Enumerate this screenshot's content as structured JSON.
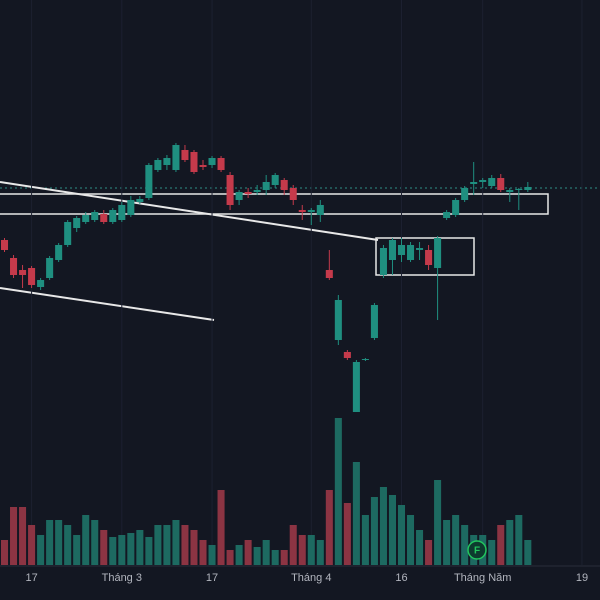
{
  "chart_data": {
    "type": "candlestick",
    "candles": [
      [
        360,
        362,
        348,
        350
      ],
      [
        342,
        345,
        322,
        325
      ],
      [
        330,
        335,
        312,
        325
      ],
      [
        332,
        334,
        312,
        315
      ],
      [
        313,
        322,
        310,
        320
      ],
      [
        322,
        344,
        320,
        342
      ],
      [
        340,
        357,
        338,
        355
      ],
      [
        355,
        380,
        353,
        378
      ],
      [
        372,
        384,
        368,
        382
      ],
      [
        378,
        388,
        376,
        385
      ],
      [
        380,
        390,
        378,
        388
      ],
      [
        386,
        390,
        376,
        378
      ],
      [
        378,
        392,
        376,
        390
      ],
      [
        380,
        398,
        378,
        395
      ],
      [
        385,
        404,
        383,
        400
      ],
      [
        398,
        404,
        396,
        401
      ],
      [
        402,
        437,
        400,
        435
      ],
      [
        430,
        442,
        428,
        440
      ],
      [
        435,
        445,
        430,
        442
      ],
      [
        430,
        457,
        428,
        455
      ],
      [
        450,
        455,
        438,
        440
      ],
      [
        448,
        450,
        426,
        428
      ],
      [
        435,
        440,
        430,
        433
      ],
      [
        435,
        444,
        432,
        442
      ],
      [
        442,
        444,
        428,
        430
      ],
      [
        425,
        428,
        390,
        395
      ],
      [
        400,
        410,
        395,
        408
      ],
      [
        408,
        412,
        402,
        406
      ],
      [
        408,
        415,
        405,
        410
      ],
      [
        410,
        425,
        405,
        418
      ],
      [
        415,
        427,
        412,
        425
      ],
      [
        420,
        422,
        405,
        410
      ],
      [
        412,
        415,
        395,
        400
      ],
      [
        390,
        395,
        380,
        388
      ],
      [
        388,
        392,
        375,
        390
      ],
      [
        385,
        400,
        378,
        395
      ],
      [
        330,
        350,
        320,
        322
      ],
      [
        260,
        305,
        255,
        300
      ],
      [
        248,
        250,
        240,
        242
      ],
      [
        188,
        240,
        188,
        238
      ],
      [
        240,
        242,
        239,
        241
      ],
      [
        262,
        297,
        260,
        295
      ],
      [
        325,
        355,
        322,
        352
      ],
      [
        340,
        362,
        325,
        360
      ],
      [
        345,
        362,
        338,
        355
      ],
      [
        340,
        358,
        338,
        355
      ],
      [
        350,
        358,
        340,
        352
      ],
      [
        350,
        355,
        330,
        335
      ],
      [
        332,
        364,
        280,
        362
      ],
      [
        382,
        390,
        380,
        388
      ],
      [
        385,
        402,
        383,
        400
      ],
      [
        400,
        414,
        398,
        412
      ],
      [
        416,
        438,
        405,
        418
      ],
      [
        418,
        422,
        412,
        420
      ],
      [
        414,
        425,
        412,
        422
      ],
      [
        422,
        426,
        408,
        410
      ],
      [
        408,
        412,
        398,
        410
      ],
      [
        410,
        412,
        390,
        411
      ],
      [
        410,
        418,
        408,
        413
      ]
    ],
    "volumes": [
      25,
      58,
      58,
      40,
      30,
      45,
      45,
      40,
      30,
      50,
      45,
      35,
      28,
      30,
      32,
      35,
      28,
      40,
      40,
      45,
      40,
      35,
      25,
      20,
      75,
      15,
      20,
      25,
      18,
      25,
      15,
      15,
      40,
      30,
      30,
      25,
      75,
      147,
      62,
      103,
      50,
      68,
      78,
      70,
      60,
      50,
      35,
      25,
      85,
      45,
      50,
      40,
      30,
      30,
      25,
      40,
      45,
      50,
      25
    ],
    "ylim": [
      0,
      600
    ],
    "volume_ylim": [
      0,
      565
    ],
    "xlim": [
      -0.5,
      66
    ],
    "xticks": [
      {
        "value": 3,
        "label": "17"
      },
      {
        "value": 13,
        "label": "Tháng 3"
      },
      {
        "value": 23,
        "label": "17"
      },
      {
        "value": 34,
        "label": "Tháng 4"
      },
      {
        "value": 44,
        "label": "16"
      },
      {
        "value": 53,
        "label": "Tháng Năm"
      },
      {
        "value": 64,
        "label": "19"
      }
    ],
    "up_color": "#1f8f80",
    "down_color": "#c53a4b",
    "volume_up_color": "#1d6a61",
    "volume_down_color": "#8c3443",
    "event_marker": "F"
  }
}
